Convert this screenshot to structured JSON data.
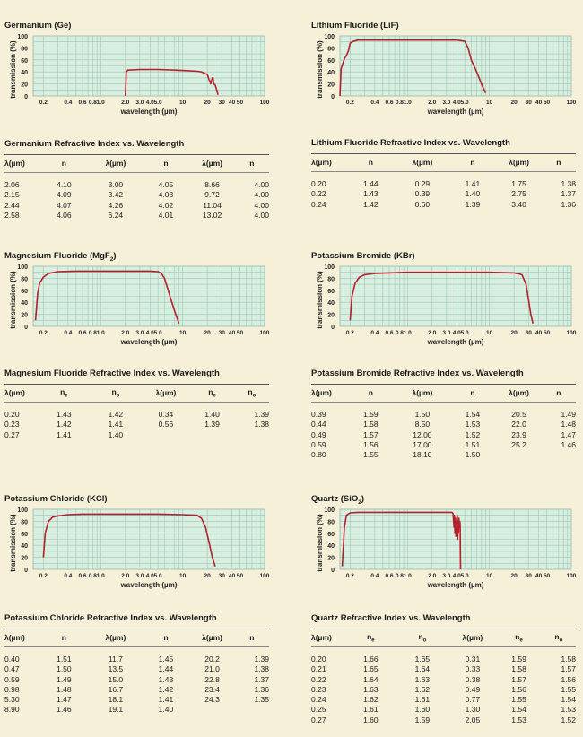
{
  "panels": [
    {
      "id": "ge",
      "chart_title": "Germanium (Ge)",
      "table_title": "Germanium Refractive Index vs. Wavelength",
      "columns": [
        "λ(µm)",
        "n",
        "λ(µm)",
        "n",
        "λ(µm)",
        "n"
      ],
      "rows": [
        [
          "2.06",
          "4.10",
          "3.00",
          "4.05",
          "8.66",
          "4.00"
        ],
        [
          "2.15",
          "4.09",
          "3.42",
          "4.03",
          "9.72",
          "4.00"
        ],
        [
          "2.44",
          "4.07",
          "4.26",
          "4.02",
          "11.04",
          "4.00"
        ],
        [
          "2.58",
          "4.06",
          "6.24",
          "4.01",
          "13.02",
          "4.00"
        ]
      ]
    },
    {
      "id": "lif",
      "chart_title": "Lithium Fluoride (LiF)",
      "table_title": "Lithium Fluoride Refractive Index vs. Wavelength",
      "columns": [
        "λ(µm)",
        "n",
        "λ(µm)",
        "n",
        "λ(µm)",
        "n"
      ],
      "rows": [
        [
          "0.20",
          "1.44",
          "0.29",
          "1.41",
          "1.75",
          "1.38"
        ],
        [
          "0.22",
          "1.43",
          "0.39",
          "1.40",
          "2.75",
          "1.37"
        ],
        [
          "0.24",
          "1.42",
          "0.60",
          "1.39",
          "3.40",
          "1.36"
        ]
      ]
    },
    {
      "id": "mgf2",
      "chart_title": "Magnesium Fluoride (MgF",
      "chart_title_sub": "2",
      "chart_title_end": ")",
      "table_title": "Magnesium Fluoride Refractive Index vs. Wavelength",
      "columns": [
        "λ(µm)",
        "n",
        "n",
        "λ(µm)",
        "n",
        "n"
      ],
      "column_subs": [
        "",
        "e",
        "o",
        "",
        "e",
        "o"
      ],
      "rows": [
        [
          "0.20",
          "1.43",
          "1.42",
          "0.34",
          "1.40",
          "1.39"
        ],
        [
          "0.23",
          "1.42",
          "1.41",
          "0.56",
          "1.39",
          "1.38"
        ],
        [
          "0.27",
          "1.41",
          "1.40",
          "",
          "",
          ""
        ]
      ]
    },
    {
      "id": "kbr",
      "chart_title": "Potassium Bromide (KBr)",
      "table_title": "Potassium Bromide Refractive Index vs. Wavelength",
      "columns": [
        "λ(µm)",
        "n",
        "λ(µm)",
        "n",
        "λ(µm)",
        "n"
      ],
      "rows": [
        [
          "0.39",
          "1.59",
          "1.50",
          "1.54",
          "20.5",
          "1.49"
        ],
        [
          "0.44",
          "1.58",
          "8.50",
          "1.53",
          "22.0",
          "1.48"
        ],
        [
          "0.49",
          "1.57",
          "12.00",
          "1.52",
          "23.9",
          "1.47"
        ],
        [
          "0.59",
          "1.56",
          "17.00",
          "1.51",
          "25.2",
          "1.46"
        ],
        [
          "0.80",
          "1.55",
          "18.10",
          "1.50",
          "",
          ""
        ]
      ]
    },
    {
      "id": "kcl",
      "chart_title": "Potassium Chloride (KCl)",
      "table_title": "Potassium Chloride Refractive Index vs. Wavelength",
      "columns": [
        "λ(µm)",
        "n",
        "λ(µm)",
        "n",
        "λ(µm)",
        "n"
      ],
      "rows": [
        [
          "0.40",
          "1.51",
          "11.7",
          "1.45",
          "20.2",
          "1.39"
        ],
        [
          "0.47",
          "1.50",
          "13.5",
          "1.44",
          "21.0",
          "1.38"
        ],
        [
          "0.59",
          "1.49",
          "15.0",
          "1.43",
          "22.8",
          "1.37"
        ],
        [
          "0.98",
          "1.48",
          "16.7",
          "1.42",
          "23.4",
          "1.36"
        ],
        [
          "5.30",
          "1.47",
          "18.1",
          "1.41",
          "24.3",
          "1.35"
        ],
        [
          "8.90",
          "1.46",
          "19.1",
          "1.40",
          "",
          ""
        ]
      ]
    },
    {
      "id": "quartz",
      "chart_title": "Quartz (SiO",
      "chart_title_sub": "2",
      "chart_title_end": ")",
      "table_title": "Quartz Refractive Index vs. Wavelength",
      "columns": [
        "λ(µm)",
        "n",
        "n",
        "λ(µm)",
        "n",
        "n"
      ],
      "column_subs": [
        "",
        "e",
        "o",
        "",
        "e",
        "o"
      ],
      "rows": [
        [
          "0.20",
          "1.66",
          "1.65",
          "0.31",
          "1.59",
          "1.58"
        ],
        [
          "0.21",
          "1.65",
          "1.64",
          "0.33",
          "1.58",
          "1.57"
        ],
        [
          "0.22",
          "1.64",
          "1.63",
          "0.38",
          "1.57",
          "1.56"
        ],
        [
          "0.23",
          "1.63",
          "1.62",
          "0.49",
          "1.56",
          "1.55"
        ],
        [
          "0.24",
          "1.62",
          "1.61",
          "0.77",
          "1.55",
          "1.54"
        ],
        [
          "0.25",
          "1.61",
          "1.60",
          "1.30",
          "1.54",
          "1.53"
        ],
        [
          "0.27",
          "1.60",
          "1.59",
          "2.05",
          "1.53",
          "1.52"
        ]
      ]
    }
  ],
  "chart_data": [
    {
      "type": "line",
      "id": "ge",
      "title": "Germanium (Ge)",
      "xlabel": "wavelength (µm)",
      "ylabel": "transmission (%)",
      "xscale": "log",
      "xlim": [
        0.15,
        100
      ],
      "ylim": [
        0,
        100
      ],
      "xticks": [
        "0.2",
        "0.4",
        "0.6",
        "0.8",
        "1.0",
        "2.0",
        "3.0",
        "4.0",
        "5.0",
        "10",
        "20",
        "30",
        "40",
        "50",
        "100"
      ],
      "yticks": [
        "0",
        "20",
        "40",
        "60",
        "80",
        "100"
      ],
      "series": [
        {
          "color": "#b3202a",
          "x": [
            2.0,
            2.05,
            2.15,
            3,
            5,
            8,
            12,
            15,
            17,
            19,
            20,
            21,
            21.5,
            22,
            23,
            23.5,
            24,
            25,
            26,
            27
          ],
          "y": [
            0,
            40,
            43,
            44,
            44,
            43,
            42,
            41,
            40,
            37,
            36,
            27,
            25,
            20,
            30,
            30,
            20,
            18,
            10,
            2
          ]
        }
      ]
    },
    {
      "type": "line",
      "id": "lif",
      "title": "Lithium Fluoride (LiF)",
      "xlabel": "wavelength (µm)",
      "ylabel": "transmission (%)",
      "xscale": "log",
      "xlim": [
        0.15,
        100
      ],
      "ylim": [
        0,
        100
      ],
      "xticks": [
        "0.2",
        "0.4",
        "0.6",
        "0.8",
        "1.0",
        "2.0",
        "3.0",
        "4.0",
        "5.0",
        "10",
        "20",
        "30",
        "40",
        "50",
        "100"
      ],
      "yticks": [
        "0",
        "20",
        "40",
        "60",
        "80",
        "100"
      ],
      "series": [
        {
          "color": "#b3202a",
          "x": [
            0.15,
            0.155,
            0.17,
            0.18,
            0.19,
            0.2,
            0.22,
            0.25,
            0.3,
            0.5,
            1,
            2,
            4,
            5,
            5.5,
            6,
            7,
            8,
            9
          ],
          "y": [
            0,
            45,
            62,
            67,
            75,
            88,
            91,
            93,
            93,
            93,
            93,
            93,
            93,
            91,
            80,
            60,
            40,
            20,
            5
          ]
        }
      ]
    },
    {
      "type": "line",
      "id": "mgf2",
      "title": "Magnesium Fluoride (MgF2)",
      "xlabel": "wavelength (µm)",
      "ylabel": "transmission (%)",
      "xscale": "log",
      "xlim": [
        0.15,
        100
      ],
      "ylim": [
        0,
        100
      ],
      "xticks": [
        "0.2",
        "0.4",
        "0.6",
        "0.8",
        "1.0",
        "2.0",
        "3.0",
        "4.0",
        "5.0",
        "10",
        "20",
        "30",
        "40",
        "50",
        "100"
      ],
      "yticks": [
        "0",
        "20",
        "40",
        "60",
        "80",
        "100"
      ],
      "series": [
        {
          "color": "#b3202a",
          "x": [
            0.16,
            0.17,
            0.18,
            0.2,
            0.23,
            0.3,
            0.5,
            1,
            2,
            4,
            5,
            5.5,
            6,
            6.5,
            7,
            8,
            9
          ],
          "y": [
            10,
            55,
            72,
            82,
            88,
            91,
            92,
            92,
            92,
            92,
            91,
            88,
            80,
            65,
            50,
            25,
            5
          ]
        }
      ]
    },
    {
      "type": "line",
      "id": "kbr",
      "title": "Potassium Bromide (KBr)",
      "xlabel": "wavelength (µm)",
      "ylabel": "transmission (%)",
      "xscale": "log",
      "xlim": [
        0.15,
        100
      ],
      "ylim": [
        0,
        100
      ],
      "xticks": [
        "0.2",
        "0.4",
        "0.6",
        "0.8",
        "1.0",
        "2.0",
        "3.0",
        "4.0",
        "5.0",
        "10",
        "20",
        "30",
        "40",
        "50",
        "100"
      ],
      "yticks": [
        "0",
        "20",
        "40",
        "60",
        "80",
        "100"
      ],
      "series": [
        {
          "color": "#b3202a",
          "x": [
            0.2,
            0.21,
            0.23,
            0.26,
            0.3,
            0.4,
            0.6,
            1,
            2,
            5,
            10,
            20,
            25,
            28,
            30,
            32,
            34
          ],
          "y": [
            10,
            50,
            72,
            82,
            86,
            88,
            89,
            90,
            90,
            90,
            90,
            89,
            86,
            70,
            45,
            20,
            5
          ]
        }
      ]
    },
    {
      "type": "line",
      "id": "kcl",
      "title": "Potassium Chloride (KCl)",
      "xlabel": "wavelength (µm)",
      "ylabel": "transmission (%)",
      "xscale": "log",
      "xlim": [
        0.15,
        100
      ],
      "ylim": [
        0,
        100
      ],
      "xticks": [
        "0.2",
        "0.4",
        "0.6",
        "0.8",
        "1.0",
        "2.0",
        "3.0",
        "4.0",
        "5.0",
        "10",
        "20",
        "30",
        "40",
        "50",
        "100"
      ],
      "yticks": [
        "0",
        "20",
        "40",
        "60",
        "80",
        "100"
      ],
      "series": [
        {
          "color": "#b3202a",
          "x": [
            0.2,
            0.21,
            0.23,
            0.26,
            0.3,
            0.4,
            0.6,
            1,
            2,
            5,
            10,
            15,
            17,
            19,
            21,
            23,
            25
          ],
          "y": [
            20,
            60,
            80,
            87,
            89,
            91,
            92,
            92,
            92,
            92,
            91,
            90,
            85,
            70,
            45,
            20,
            5
          ]
        }
      ]
    },
    {
      "type": "line",
      "id": "quartz",
      "title": "Quartz (SiO2)",
      "xlabel": "wavelength (µm)",
      "ylabel": "transmission (%)",
      "xscale": "log",
      "xlim": [
        0.15,
        100
      ],
      "ylim": [
        0,
        100
      ],
      "xticks": [
        "0.2",
        "0.4",
        "0.6",
        "0.8",
        "1.0",
        "2.0",
        "3.0",
        "4.0",
        "5.0",
        "10",
        "20",
        "30",
        "40",
        "50",
        "100"
      ],
      "yticks": [
        "0",
        "20",
        "40",
        "60",
        "80",
        "100"
      ],
      "series": [
        {
          "color": "#b3202a",
          "x": [
            0.16,
            0.17,
            0.18,
            0.2,
            0.25,
            0.4,
            1,
            2,
            3,
            3.5,
            3.6,
            3.7,
            3.75,
            3.8,
            3.85,
            3.9,
            3.95,
            4.0,
            4.05,
            4.1,
            4.15,
            4.2,
            4.25,
            4.3,
            4.35,
            4.4,
            4.42,
            4.45
          ],
          "y": [
            5,
            70,
            90,
            94,
            95,
            95,
            95,
            95,
            95,
            95,
            93,
            70,
            90,
            60,
            85,
            55,
            80,
            65,
            90,
            50,
            80,
            60,
            85,
            70,
            80,
            75,
            40,
            0
          ]
        }
      ]
    }
  ]
}
